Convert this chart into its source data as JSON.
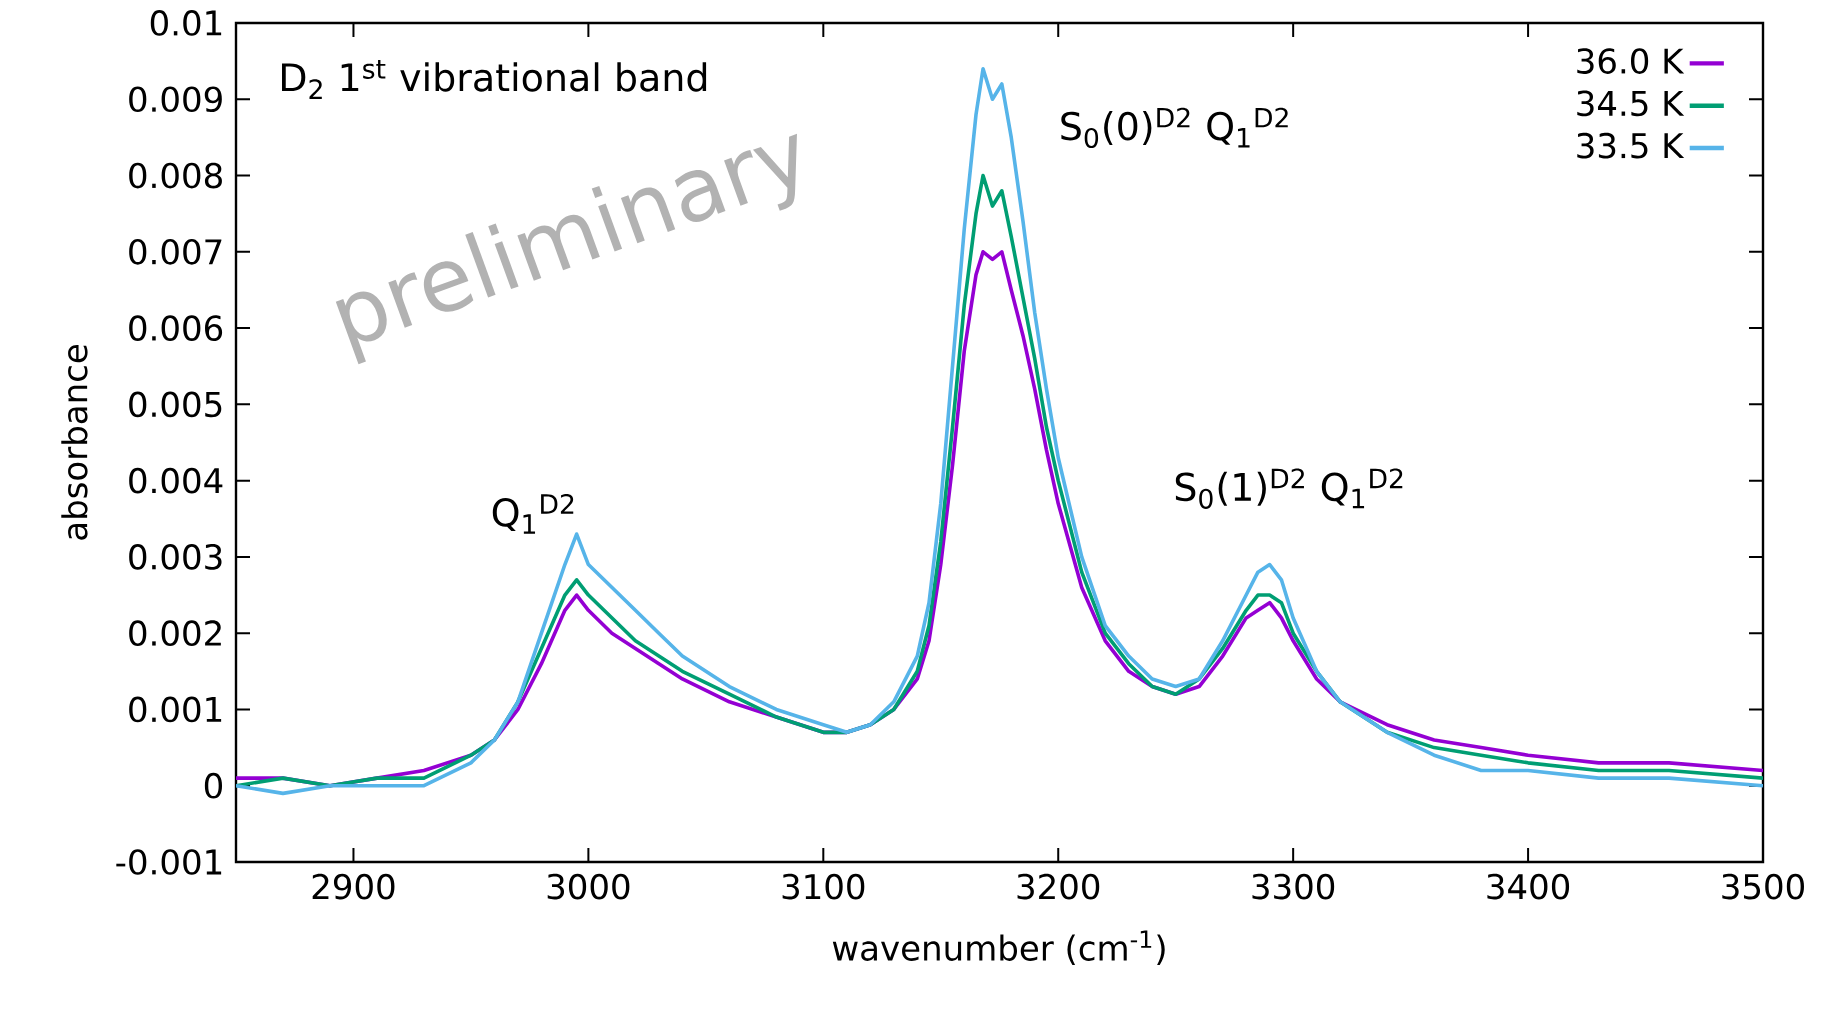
{
  "chart_data": {
    "type": "line",
    "xlabel": "wavenumber (cm$^{-1}$)",
    "ylabel": "absorbance",
    "annotations": [
      "D$_{2}$ 1$^{st}$ vibrational band",
      "preliminary",
      "Q$_{1}$$^{D2}$",
      "S$_{0}$(0)$^{D2}$ Q$_{1}$$^{D2}$",
      "S$_{0}$(1)$^{D2}$ Q$_{1}$$^{D2}$"
    ],
    "x": [
      2850,
      2870,
      2890,
      2910,
      2930,
      2950,
      2960,
      2970,
      2980,
      2990,
      2995,
      3000,
      3010,
      3020,
      3030,
      3040,
      3060,
      3080,
      3100,
      3110,
      3120,
      3130,
      3140,
      3145,
      3150,
      3155,
      3160,
      3165,
      3168,
      3172,
      3176,
      3180,
      3185,
      3190,
      3195,
      3200,
      3210,
      3220,
      3230,
      3240,
      3250,
      3260,
      3270,
      3280,
      3285,
      3290,
      3295,
      3300,
      3310,
      3320,
      3340,
      3360,
      3380,
      3400,
      3430,
      3460,
      3500
    ],
    "series": [
      {
        "name": "36.0 K",
        "color": "#9400d3",
        "values": [
          0.0001,
          0.0001,
          0.0,
          0.0001,
          0.0002,
          0.0004,
          0.0006,
          0.001,
          0.0016,
          0.0023,
          0.0025,
          0.0023,
          0.002,
          0.0018,
          0.0016,
          0.0014,
          0.0011,
          0.0009,
          0.0007,
          0.0007,
          0.0008,
          0.001,
          0.0014,
          0.0019,
          0.0029,
          0.0042,
          0.0057,
          0.0067,
          0.007,
          0.0069,
          0.007,
          0.0065,
          0.0059,
          0.0052,
          0.0044,
          0.0037,
          0.0026,
          0.0019,
          0.0015,
          0.0013,
          0.0012,
          0.0013,
          0.0017,
          0.0022,
          0.0023,
          0.0024,
          0.0022,
          0.0019,
          0.0014,
          0.0011,
          0.0008,
          0.0006,
          0.0005,
          0.0004,
          0.0003,
          0.0003,
          0.0002
        ]
      },
      {
        "name": "34.5 K",
        "color": "#009e73",
        "values": [
          0.0,
          0.0001,
          0.0,
          0.0001,
          0.0001,
          0.0004,
          0.0006,
          0.0011,
          0.0018,
          0.0025,
          0.0027,
          0.0025,
          0.0022,
          0.0019,
          0.0017,
          0.0015,
          0.0012,
          0.0009,
          0.0007,
          0.0007,
          0.0008,
          0.001,
          0.0015,
          0.0021,
          0.0032,
          0.0047,
          0.0063,
          0.0075,
          0.008,
          0.0076,
          0.0078,
          0.0072,
          0.0064,
          0.0056,
          0.0047,
          0.004,
          0.0028,
          0.002,
          0.0016,
          0.0013,
          0.0012,
          0.0014,
          0.0018,
          0.0023,
          0.0025,
          0.0025,
          0.0024,
          0.002,
          0.0015,
          0.0011,
          0.0007,
          0.0005,
          0.0004,
          0.0003,
          0.0002,
          0.0002,
          0.0001
        ]
      },
      {
        "name": "33.5 K",
        "color": "#56b4e9",
        "values": [
          0.0,
          -0.0001,
          0.0,
          0.0,
          0.0,
          0.0003,
          0.0006,
          0.0011,
          0.002,
          0.0029,
          0.0033,
          0.0029,
          0.0026,
          0.0023,
          0.002,
          0.0017,
          0.0013,
          0.001,
          0.0008,
          0.0007,
          0.0008,
          0.0011,
          0.0017,
          0.0024,
          0.0037,
          0.0055,
          0.0073,
          0.0088,
          0.0094,
          0.009,
          0.0092,
          0.0085,
          0.0074,
          0.0062,
          0.0052,
          0.0043,
          0.003,
          0.0021,
          0.0017,
          0.0014,
          0.0013,
          0.0014,
          0.0019,
          0.0025,
          0.0028,
          0.0029,
          0.0027,
          0.0022,
          0.0015,
          0.0011,
          0.0007,
          0.0004,
          0.0002,
          0.0002,
          0.0001,
          0.0001,
          0.0
        ]
      }
    ],
    "xlim": [
      2850,
      3500
    ],
    "ylim": [
      -0.001,
      0.01
    ],
    "xticks": [
      2900,
      3000,
      3100,
      3200,
      3300,
      3400,
      3500
    ],
    "yticks": [
      -0.001,
      0,
      0.001,
      0.002,
      0.003,
      0.004,
      0.005,
      0.006,
      0.007,
      0.008,
      0.009,
      0.01
    ],
    "grid": false,
    "legend": "top right",
    "marker": "none",
    "line_style": "solid"
  }
}
